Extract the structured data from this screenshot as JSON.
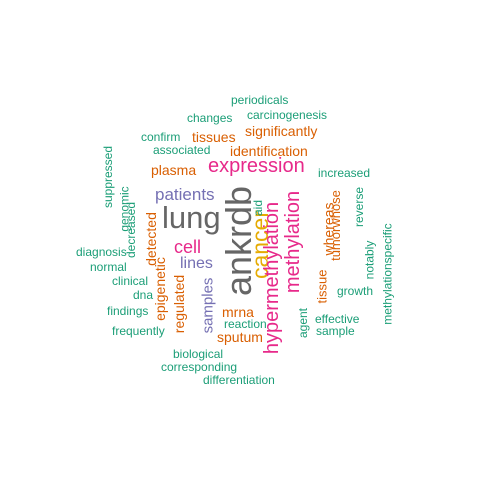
{
  "colors": {
    "green": "#1b9e77",
    "orange": "#d95f02",
    "purple": "#7570b3",
    "magenta": "#e7298a",
    "gold": "#e6ab02",
    "gray": "#666666"
  },
  "words": [
    {
      "text": "ankrdb",
      "color": "gray",
      "rotated": true
    },
    {
      "text": "lung",
      "color": "gray",
      "rotated": false
    },
    {
      "text": "cancer",
      "color": "gold",
      "rotated": true
    },
    {
      "text": "hypermethylation",
      "color": "magenta",
      "rotated": true
    },
    {
      "text": "methylation",
      "color": "magenta",
      "rotated": true
    },
    {
      "text": "expression",
      "color": "magenta",
      "rotated": false
    },
    {
      "text": "cell",
      "color": "magenta",
      "rotated": false
    },
    {
      "text": "patients",
      "color": "purple",
      "rotated": false
    },
    {
      "text": "lines",
      "color": "purple",
      "rotated": false
    },
    {
      "text": "samples",
      "color": "purple",
      "rotated": true
    },
    {
      "text": "significantly",
      "color": "orange",
      "rotated": false
    },
    {
      "text": "identification",
      "color": "orange",
      "rotated": false
    },
    {
      "text": "tissues",
      "color": "orange",
      "rotated": false
    },
    {
      "text": "plasma",
      "color": "orange",
      "rotated": false
    },
    {
      "text": "whereas",
      "color": "orange",
      "rotated": true
    },
    {
      "text": "tumorwhose",
      "color": "orange",
      "rotated": true
    },
    {
      "text": "tissue",
      "color": "orange",
      "rotated": true
    },
    {
      "text": "detected",
      "color": "orange",
      "rotated": true
    },
    {
      "text": "epigenetic",
      "color": "orange",
      "rotated": true
    },
    {
      "text": "regulated",
      "color": "orange",
      "rotated": true
    },
    {
      "text": "mrna",
      "color": "orange",
      "rotated": false
    },
    {
      "text": "sputum",
      "color": "orange",
      "rotated": false
    },
    {
      "text": "periodicals",
      "color": "green",
      "rotated": false
    },
    {
      "text": "changes",
      "color": "green",
      "rotated": false
    },
    {
      "text": "carcinogenesis",
      "color": "green",
      "rotated": false
    },
    {
      "text": "confirm",
      "color": "green",
      "rotated": false
    },
    {
      "text": "associated",
      "color": "green",
      "rotated": false
    },
    {
      "text": "suppressed",
      "color": "green",
      "rotated": true
    },
    {
      "text": "genomic",
      "color": "green",
      "rotated": true
    },
    {
      "text": "decreased",
      "color": "green",
      "rotated": true
    },
    {
      "text": "increased",
      "color": "green",
      "rotated": false
    },
    {
      "text": "reverse",
      "color": "green",
      "rotated": true
    },
    {
      "text": "notably",
      "color": "green",
      "rotated": true
    },
    {
      "text": "methylationspecific",
      "color": "green",
      "rotated": true
    },
    {
      "text": "aid",
      "color": "green",
      "rotated": true
    },
    {
      "text": "diagnosis",
      "color": "green",
      "rotated": false
    },
    {
      "text": "normal",
      "color": "green",
      "rotated": false
    },
    {
      "text": "clinical",
      "color": "green",
      "rotated": false
    },
    {
      "text": "dna",
      "color": "green",
      "rotated": false
    },
    {
      "text": "findings",
      "color": "green",
      "rotated": false
    },
    {
      "text": "frequently",
      "color": "green",
      "rotated": false
    },
    {
      "text": "growth",
      "color": "green",
      "rotated": false
    },
    {
      "text": "effective",
      "color": "green",
      "rotated": false
    },
    {
      "text": "sample",
      "color": "green",
      "rotated": false
    },
    {
      "text": "agent",
      "color": "green",
      "rotated": true
    },
    {
      "text": "reaction",
      "color": "green",
      "rotated": false
    },
    {
      "text": "biological",
      "color": "green",
      "rotated": false
    },
    {
      "text": "corresponding",
      "color": "green",
      "rotated": false
    },
    {
      "text": "differentiation",
      "color": "green",
      "rotated": false
    }
  ]
}
